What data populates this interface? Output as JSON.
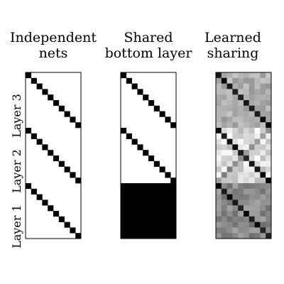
{
  "panels": [
    {
      "title": "Independent\nnets",
      "pattern": "independent"
    },
    {
      "title": "Shared\nbottom layer",
      "pattern": "shared"
    },
    {
      "title": "Learned\nsharing",
      "pattern": "learned"
    }
  ],
  "layer_labels": [
    "Layer 3",
    "Layer 2",
    "Layer 1"
  ],
  "matrix": {
    "rows": 30,
    "cols": 10
  },
  "colors": {
    "on": "#000000",
    "off": "#ffffff",
    "border": "#000000"
  }
}
